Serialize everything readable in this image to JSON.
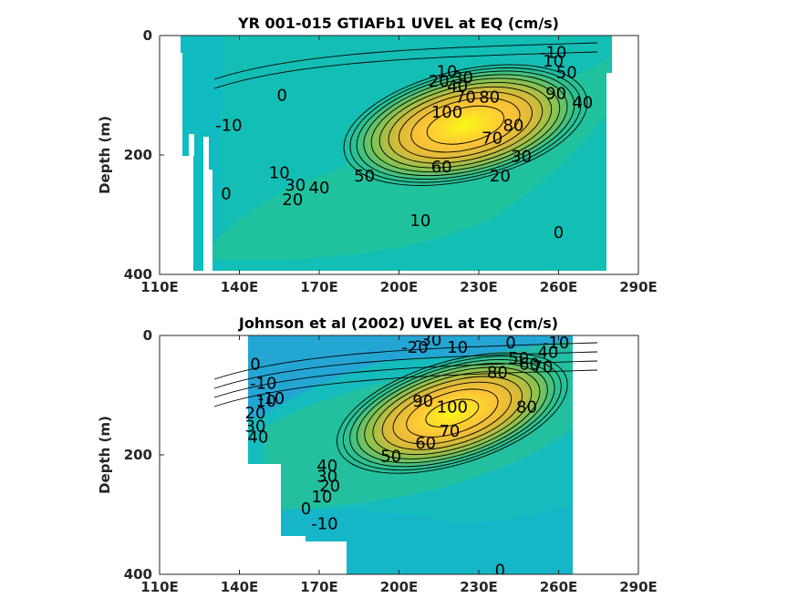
{
  "chart_data": [
    {
      "type": "contour",
      "title": "YR 001-015 GTIAFb1 UVEL at EQ (cm/s)",
      "xlabel": "",
      "ylabel": "Depth (m)",
      "xlim": [
        110,
        290
      ],
      "ylim": [
        400,
        0
      ],
      "y_reversed": true,
      "x_ticks": [
        110,
        140,
        170,
        200,
        230,
        260,
        290
      ],
      "x_tick_labels": [
        "110E",
        "140E",
        "170E",
        "200E",
        "230E",
        "260E",
        "290E"
      ],
      "y_ticks": [
        0,
        200,
        400
      ],
      "y_tick_labels": [
        "0",
        "200",
        "400"
      ],
      "colormap": [
        "#3e26a8",
        "#2d8ae5",
        "#0db5cd",
        "#2dc18f",
        "#89c34f",
        "#d9ba38",
        "#fcc338",
        "#f9fb15"
      ],
      "levels": [
        -10,
        0,
        10,
        20,
        30,
        40,
        50,
        60,
        70,
        80,
        90,
        100
      ],
      "core": {
        "lon": 225,
        "depth": 150,
        "max_speed": 110
      },
      "contour_labels": [
        {
          "text": "-10",
          "lon": 258,
          "depth": 28
        },
        {
          "text": "10",
          "lon": 258,
          "depth": 43
        },
        {
          "text": "50",
          "lon": 263,
          "depth": 62
        },
        {
          "text": "10",
          "lon": 218,
          "depth": 60
        },
        {
          "text": "30",
          "lon": 224,
          "depth": 70
        },
        {
          "text": "20",
          "lon": 215,
          "depth": 76
        },
        {
          "text": "40",
          "lon": 222,
          "depth": 85
        },
        {
          "text": "70",
          "lon": 225,
          "depth": 103
        },
        {
          "text": "80",
          "lon": 234,
          "depth": 103
        },
        {
          "text": "90",
          "lon": 259,
          "depth": 97
        },
        {
          "text": "0",
          "lon": 156,
          "depth": 100
        },
        {
          "text": "40",
          "lon": 269,
          "depth": 112
        },
        {
          "text": "100",
          "lon": 218,
          "depth": 128
        },
        {
          "text": "-10",
          "lon": 136,
          "depth": 150
        },
        {
          "text": "80",
          "lon": 243,
          "depth": 150
        },
        {
          "text": "70",
          "lon": 235,
          "depth": 172
        },
        {
          "text": "60",
          "lon": 216,
          "depth": 220
        },
        {
          "text": "30",
          "lon": 246,
          "depth": 202
        },
        {
          "text": "50",
          "lon": 187,
          "depth": 235
        },
        {
          "text": "20",
          "lon": 238,
          "depth": 235
        },
        {
          "text": "40",
          "lon": 170,
          "depth": 255
        },
        {
          "text": "10",
          "lon": 155,
          "depth": 230
        },
        {
          "text": "30",
          "lon": 161,
          "depth": 250
        },
        {
          "text": "20",
          "lon": 160,
          "depth": 275
        },
        {
          "text": "0",
          "lon": 135,
          "depth": 265
        },
        {
          "text": "10",
          "lon": 208,
          "depth": 310
        },
        {
          "text": "0",
          "lon": 260,
          "depth": 330
        }
      ]
    },
    {
      "type": "contour",
      "title": "Johnson et al (2002) UVEL at EQ (cm/s)",
      "xlabel": "",
      "ylabel": "Depth (m)",
      "xlim": [
        110,
        290
      ],
      "ylim": [
        400,
        0
      ],
      "y_reversed": true,
      "x_ticks": [
        110,
        140,
        170,
        200,
        230,
        260,
        290
      ],
      "x_tick_labels": [
        "110E",
        "140E",
        "170E",
        "200E",
        "230E",
        "260E",
        "290E"
      ],
      "y_ticks": [
        0,
        200,
        400
      ],
      "y_tick_labels": [
        "0",
        "200",
        "400"
      ],
      "colormap": [
        "#3e26a8",
        "#2d8ae5",
        "#0db5cd",
        "#2dc18f",
        "#89c34f",
        "#d9ba38",
        "#fcc338",
        "#f9fb15"
      ],
      "levels": [
        -30,
        -20,
        -10,
        0,
        10,
        20,
        30,
        40,
        50,
        60,
        70,
        80,
        90,
        100
      ],
      "core": {
        "lon": 220,
        "depth": 130,
        "max_speed": 105
      },
      "contour_labels": [
        {
          "text": "-30",
          "lon": 211,
          "depth": 8
        },
        {
          "text": "0",
          "lon": 242,
          "depth": 12
        },
        {
          "text": "-10",
          "lon": 259,
          "depth": 12
        },
        {
          "text": "-20",
          "lon": 206,
          "depth": 20
        },
        {
          "text": "10",
          "lon": 222,
          "depth": 20
        },
        {
          "text": "50",
          "lon": 245,
          "depth": 38
        },
        {
          "text": "40",
          "lon": 256,
          "depth": 28
        },
        {
          "text": "60",
          "lon": 249,
          "depth": 48
        },
        {
          "text": "70",
          "lon": 254,
          "depth": 53
        },
        {
          "text": "80",
          "lon": 237,
          "depth": 62
        },
        {
          "text": "0",
          "lon": 146,
          "depth": 48
        },
        {
          "text": "-10",
          "lon": 149,
          "depth": 80
        },
        {
          "text": "-10",
          "lon": 152,
          "depth": 105
        },
        {
          "text": "10",
          "lon": 150,
          "depth": 110
        },
        {
          "text": "90",
          "lon": 209,
          "depth": 110
        },
        {
          "text": "100",
          "lon": 220,
          "depth": 120
        },
        {
          "text": "80",
          "lon": 248,
          "depth": 120
        },
        {
          "text": "20",
          "lon": 146,
          "depth": 130
        },
        {
          "text": "70",
          "lon": 219,
          "depth": 160
        },
        {
          "text": "30",
          "lon": 146,
          "depth": 152
        },
        {
          "text": "40",
          "lon": 147,
          "depth": 170
        },
        {
          "text": "60",
          "lon": 210,
          "depth": 180
        },
        {
          "text": "50",
          "lon": 197,
          "depth": 202
        },
        {
          "text": "40",
          "lon": 173,
          "depth": 218
        },
        {
          "text": "30",
          "lon": 173,
          "depth": 236
        },
        {
          "text": "20",
          "lon": 174,
          "depth": 252
        },
        {
          "text": "10",
          "lon": 171,
          "depth": 270
        },
        {
          "text": "0",
          "lon": 165,
          "depth": 290
        },
        {
          "text": "-10",
          "lon": 172,
          "depth": 315
        },
        {
          "text": "0",
          "lon": 238,
          "depth": 393
        }
      ]
    }
  ]
}
